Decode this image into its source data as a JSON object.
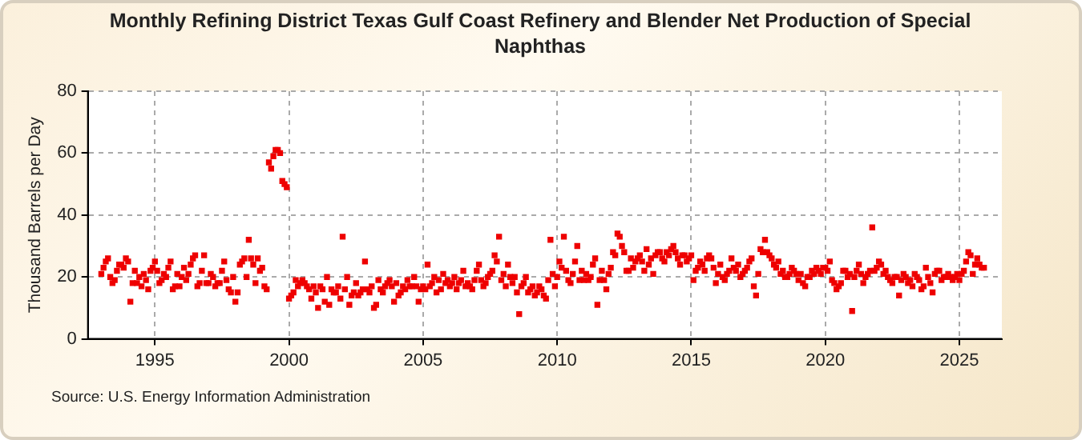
{
  "chart_data": {
    "type": "scatter",
    "title": "Monthly Refining District Texas Gulf Coast Refinery and Blender Net Production of Special Naphthas",
    "ylabel": "Thousand Barrels per Day",
    "annotations": [
      "Source: U.S. Energy Information Administration"
    ],
    "xlim": [
      "1992-07",
      "2026-08"
    ],
    "xticks": [
      "1995",
      "2000",
      "2005",
      "2010",
      "2015",
      "2020",
      "2025"
    ],
    "ylim": [
      0,
      80
    ],
    "yticks": [
      0,
      20,
      40,
      60,
      80
    ],
    "grid": true,
    "marker": "square",
    "x": [
      "1993-01",
      "1993-02",
      "1993-03",
      "1993-04",
      "1993-05",
      "1993-06",
      "1993-07",
      "1993-08",
      "1993-09",
      "1993-10",
      "1993-11",
      "1993-12",
      "1994-01",
      "1994-02",
      "1994-03",
      "1994-04",
      "1994-05",
      "1994-06",
      "1994-07",
      "1994-08",
      "1994-09",
      "1994-10",
      "1994-11",
      "1994-12",
      "1995-01",
      "1995-02",
      "1995-03",
      "1995-04",
      "1995-05",
      "1995-06",
      "1995-07",
      "1995-08",
      "1995-09",
      "1995-10",
      "1995-11",
      "1995-12",
      "1996-01",
      "1996-02",
      "1996-03",
      "1996-04",
      "1996-05",
      "1996-06",
      "1996-07",
      "1996-08",
      "1996-09",
      "1996-10",
      "1996-11",
      "1996-12",
      "1997-01",
      "1997-02",
      "1997-03",
      "1997-04",
      "1997-05",
      "1997-06",
      "1997-07",
      "1997-08",
      "1997-09",
      "1997-10",
      "1997-11",
      "1997-12",
      "1998-01",
      "1998-02",
      "1998-03",
      "1998-04",
      "1998-05",
      "1998-06",
      "1998-07",
      "1998-08",
      "1998-09",
      "1998-10",
      "1998-11",
      "1998-12",
      "1999-01",
      "1999-02",
      "1999-03",
      "1999-04",
      "1999-05",
      "1999-06",
      "1999-07",
      "1999-08",
      "1999-09",
      "1999-10",
      "1999-11",
      "1999-12",
      "2000-01",
      "2000-02",
      "2000-03",
      "2000-04",
      "2000-05",
      "2000-06",
      "2000-07",
      "2000-08",
      "2000-09",
      "2000-10",
      "2000-11",
      "2000-12",
      "2001-01",
      "2001-02",
      "2001-03",
      "2001-04",
      "2001-05",
      "2001-06",
      "2001-07",
      "2001-08",
      "2001-09",
      "2001-10",
      "2001-11",
      "2001-12",
      "2002-01",
      "2002-02",
      "2002-03",
      "2002-04",
      "2002-05",
      "2002-06",
      "2002-07",
      "2002-08",
      "2002-09",
      "2002-10",
      "2002-11",
      "2002-12",
      "2003-01",
      "2003-02",
      "2003-03",
      "2003-04",
      "2003-05",
      "2003-06",
      "2003-07",
      "2003-08",
      "2003-09",
      "2003-10",
      "2003-11",
      "2003-12",
      "2004-01",
      "2004-02",
      "2004-03",
      "2004-04",
      "2004-05",
      "2004-06",
      "2004-07",
      "2004-08",
      "2004-09",
      "2004-10",
      "2004-11",
      "2004-12",
      "2005-01",
      "2005-02",
      "2005-03",
      "2005-04",
      "2005-05",
      "2005-06",
      "2005-07",
      "2005-08",
      "2005-09",
      "2005-10",
      "2005-11",
      "2005-12",
      "2006-01",
      "2006-02",
      "2006-03",
      "2006-04",
      "2006-05",
      "2006-06",
      "2006-07",
      "2006-08",
      "2006-09",
      "2006-10",
      "2006-11",
      "2006-12",
      "2007-01",
      "2007-02",
      "2007-03",
      "2007-04",
      "2007-05",
      "2007-06",
      "2007-07",
      "2007-08",
      "2007-09",
      "2007-10",
      "2007-11",
      "2007-12",
      "2008-01",
      "2008-02",
      "2008-03",
      "2008-04",
      "2008-05",
      "2008-06",
      "2008-07",
      "2008-08",
      "2008-09",
      "2008-10",
      "2008-11",
      "2008-12",
      "2009-01",
      "2009-02",
      "2009-03",
      "2009-04",
      "2009-05",
      "2009-06",
      "2009-07",
      "2009-08",
      "2009-09",
      "2009-10",
      "2009-11",
      "2009-12",
      "2010-01",
      "2010-02",
      "2010-03",
      "2010-04",
      "2010-05",
      "2010-06",
      "2010-07",
      "2010-08",
      "2010-09",
      "2010-10",
      "2010-11",
      "2010-12",
      "2011-01",
      "2011-02",
      "2011-03",
      "2011-04",
      "2011-05",
      "2011-06",
      "2011-07",
      "2011-08",
      "2011-09",
      "2011-10",
      "2011-11",
      "2011-12",
      "2012-01",
      "2012-02",
      "2012-03",
      "2012-04",
      "2012-05",
      "2012-06",
      "2012-07",
      "2012-08",
      "2012-09",
      "2012-10",
      "2012-11",
      "2012-12",
      "2013-01",
      "2013-02",
      "2013-03",
      "2013-04",
      "2013-05",
      "2013-06",
      "2013-07",
      "2013-08",
      "2013-09",
      "2013-10",
      "2013-11",
      "2013-12",
      "2014-01",
      "2014-02",
      "2014-03",
      "2014-04",
      "2014-05",
      "2014-06",
      "2014-07",
      "2014-08",
      "2014-09",
      "2014-10",
      "2014-11",
      "2014-12",
      "2015-01",
      "2015-02",
      "2015-03",
      "2015-04",
      "2015-05",
      "2015-06",
      "2015-07",
      "2015-08",
      "2015-09",
      "2015-10",
      "2015-11",
      "2015-12",
      "2016-01",
      "2016-02",
      "2016-03",
      "2016-04",
      "2016-05",
      "2016-06",
      "2016-07",
      "2016-08",
      "2016-09",
      "2016-10",
      "2016-11",
      "2016-12",
      "2017-01",
      "2017-02",
      "2017-03",
      "2017-04",
      "2017-05",
      "2017-06",
      "2017-07",
      "2017-08",
      "2017-09",
      "2017-10",
      "2017-11",
      "2017-12",
      "2018-01",
      "2018-02",
      "2018-03",
      "2018-04",
      "2018-05",
      "2018-06",
      "2018-07",
      "2018-08",
      "2018-09",
      "2018-10",
      "2018-11",
      "2018-12",
      "2019-01",
      "2019-02",
      "2019-03",
      "2019-04",
      "2019-05",
      "2019-06",
      "2019-07",
      "2019-08",
      "2019-09",
      "2019-10",
      "2019-11",
      "2019-12",
      "2020-01",
      "2020-02",
      "2020-03",
      "2020-04",
      "2020-05",
      "2020-06",
      "2020-07",
      "2020-08",
      "2020-09",
      "2020-10",
      "2020-11",
      "2020-12",
      "2021-01",
      "2021-02",
      "2021-03",
      "2021-04",
      "2021-05",
      "2021-06",
      "2021-07",
      "2021-08",
      "2021-09",
      "2021-10",
      "2021-11",
      "2021-12",
      "2022-01",
      "2022-02",
      "2022-03",
      "2022-04",
      "2022-05",
      "2022-06",
      "2022-07",
      "2022-08",
      "2022-09",
      "2022-10",
      "2022-11",
      "2022-12",
      "2023-01",
      "2023-02",
      "2023-03",
      "2023-04",
      "2023-05",
      "2023-06",
      "2023-07",
      "2023-08",
      "2023-09",
      "2023-10",
      "2023-11",
      "2023-12",
      "2024-01",
      "2024-02",
      "2024-03",
      "2024-04",
      "2024-05",
      "2024-06",
      "2024-07",
      "2024-08",
      "2024-09",
      "2024-10",
      "2024-11",
      "2024-12",
      "2025-01",
      "2025-02",
      "2025-03",
      "2025-04",
      "2025-05",
      "2025-06",
      "2025-07",
      "2025-08",
      "2025-09",
      "2025-10",
      "2025-11",
      "2025-12"
    ],
    "series": [
      {
        "color": "#ee0000",
        "values": [
          21,
          23,
          25,
          26,
          20,
          18,
          19,
          22,
          24,
          24,
          23,
          26,
          25,
          12,
          18,
          22,
          18,
          20,
          17,
          21,
          19,
          16,
          22,
          23,
          25,
          22,
          18,
          19,
          21,
          20,
          23,
          25,
          16,
          17,
          21,
          17,
          20,
          23,
          19,
          21,
          24,
          26,
          27,
          17,
          18,
          22,
          27,
          18,
          18,
          21,
          20,
          17,
          18,
          18,
          22,
          25,
          19,
          16,
          15,
          20,
          12,
          15,
          24,
          25,
          26,
          20,
          32,
          26,
          24,
          18,
          26,
          22,
          23,
          17,
          16,
          57,
          55,
          59,
          61,
          61,
          60,
          51,
          50,
          49,
          13,
          14,
          15,
          19,
          17,
          18,
          19,
          18,
          17,
          16,
          13,
          17,
          15,
          10,
          17,
          16,
          12,
          20,
          11,
          16,
          15,
          15,
          17,
          13,
          33,
          16,
          20,
          11,
          14,
          15,
          18,
          14,
          15,
          16,
          25,
          16,
          15,
          17,
          10,
          11,
          19,
          16,
          15,
          17,
          18,
          19,
          17,
          12,
          18,
          14,
          15,
          17,
          16,
          19,
          17,
          17,
          20,
          17,
          12,
          16,
          17,
          16,
          24,
          17,
          18,
          20,
          15,
          19,
          16,
          21,
          18,
          19,
          17,
          18,
          20,
          16,
          18,
          19,
          22,
          17,
          18,
          17,
          16,
          19,
          22,
          24,
          19,
          17,
          18,
          20,
          21,
          22,
          27,
          25,
          33,
          19,
          21,
          17,
          24,
          20,
          18,
          20,
          15,
          8,
          17,
          18,
          20,
          15,
          16,
          17,
          14,
          15,
          17,
          16,
          14,
          13,
          19,
          32,
          21,
          17,
          20,
          25,
          23,
          33,
          22,
          19,
          18,
          21,
          25,
          30,
          19,
          22,
          19,
          21,
          19,
          20,
          24,
          26,
          11,
          19,
          22,
          19,
          16,
          21,
          23,
          28,
          27,
          34,
          33,
          30,
          28,
          22,
          22,
          26,
          23,
          25,
          26,
          27,
          25,
          22,
          29,
          24,
          26,
          21,
          27,
          28,
          28,
          26,
          25,
          28,
          27,
          29,
          30,
          28,
          26,
          24,
          27,
          27,
          25,
          26,
          27,
          19,
          22,
          23,
          25,
          24,
          22,
          26,
          27,
          26,
          23,
          18,
          21,
          24,
          20,
          19,
          21,
          22,
          26,
          23,
          22,
          24,
          20,
          21,
          22,
          23,
          25,
          26,
          17,
          14,
          21,
          29,
          28,
          32,
          28,
          27,
          26,
          24,
          23,
          25,
          21,
          22,
          20,
          20,
          21,
          23,
          22,
          21,
          19,
          21,
          18,
          17,
          20,
          20,
          22,
          21,
          23,
          22,
          21,
          23,
          23,
          22,
          25,
          19,
          18,
          16,
          17,
          18,
          22,
          22,
          20,
          21,
          9,
          20,
          22,
          24,
          21,
          18,
          20,
          21,
          22,
          36,
          22,
          23,
          25,
          24,
          21,
          22,
          20,
          19,
          18,
          20,
          20,
          14,
          19,
          21,
          20,
          18,
          19,
          17,
          21,
          20,
          19,
          16,
          17,
          23,
          20,
          18,
          15,
          21,
          22,
          22,
          19,
          20,
          20,
          21,
          20,
          19,
          20,
          21,
          19,
          21,
          22,
          25,
          28,
          27,
          21,
          24,
          26,
          24,
          23,
          23
        ]
      }
    ]
  }
}
